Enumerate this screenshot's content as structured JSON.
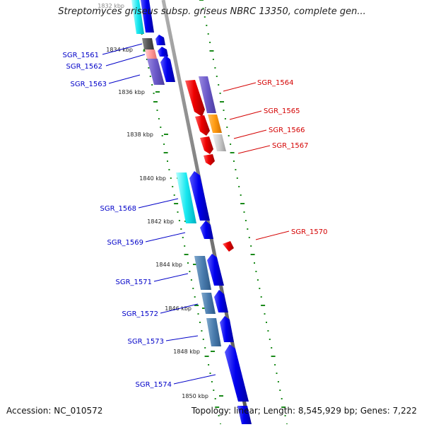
{
  "header": {
    "title": "Streptomyces griseus subsp. griseus NBRC 13350, complete gen..."
  },
  "footer": {
    "accession": "Accession: NC_010572",
    "topology": "Topology: linear; Length: 8,545,929 bp; Genes: 7,222"
  },
  "colors": {
    "left_label": "#0000c8",
    "right_label": "#d40000",
    "backbone": "#8a8a8a",
    "ruler_dots": "#1a8a1a"
  },
  "ruler_ticks": [
    {
      "label": "1832 kbp"
    },
    {
      "label": "1834 kbp"
    },
    {
      "label": "1836 kbp"
    },
    {
      "label": "1838 kbp"
    },
    {
      "label": "1840 kbp"
    },
    {
      "label": "1842 kbp"
    },
    {
      "label": "1844 kbp"
    },
    {
      "label": "1846 kbp"
    },
    {
      "label": "1848 kbp"
    },
    {
      "label": "1850 kbp"
    }
  ],
  "genes_left": [
    {
      "label": "SGR_1561"
    },
    {
      "label": "SGR_1562"
    },
    {
      "label": "SGR_1563"
    },
    {
      "label": "SGR_1568"
    },
    {
      "label": "SGR_1569"
    },
    {
      "label": "SGR_1571"
    },
    {
      "label": "SGR_1572"
    },
    {
      "label": "SGR_1573"
    },
    {
      "label": "SGR_1574"
    }
  ],
  "genes_right": [
    {
      "label": "SGR_1564"
    },
    {
      "label": "SGR_1565"
    },
    {
      "label": "SGR_1566"
    },
    {
      "label": "SGR_1567"
    },
    {
      "label": "SGR_1570"
    }
  ]
}
